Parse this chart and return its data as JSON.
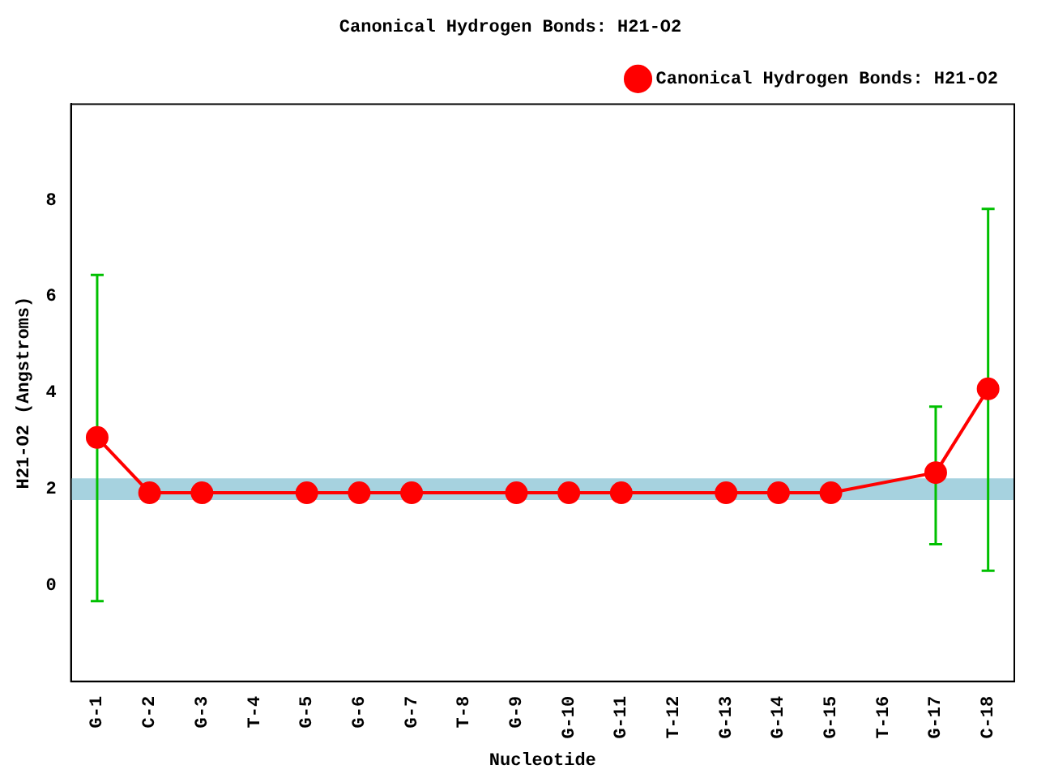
{
  "chart_data": {
    "type": "line",
    "title": "Canonical Hydrogen Bonds: H21-O2",
    "xlabel": "Nucleotide",
    "ylabel": "H21-O2 (Angstroms)",
    "categories": [
      "G-1",
      "C-2",
      "G-3",
      "T-4",
      "G-5",
      "G-6",
      "G-7",
      "T-8",
      "G-9",
      "G-10",
      "G-11",
      "T-12",
      "G-13",
      "G-14",
      "G-15",
      "T-16",
      "G-17",
      "C-18"
    ],
    "series": [
      {
        "name": "Canonical Hydrogen Bonds: H21-O2",
        "color": "#ff0000",
        "values": [
          3.07,
          1.92,
          1.92,
          null,
          1.92,
          1.92,
          1.92,
          null,
          1.92,
          1.92,
          1.92,
          null,
          1.92,
          1.92,
          1.92,
          null,
          2.34,
          4.08
        ],
        "errors": [
          [
            -0.33,
            6.45
          ],
          null,
          null,
          null,
          null,
          null,
          null,
          null,
          null,
          null,
          null,
          null,
          null,
          null,
          null,
          null,
          [
            0.85,
            3.71
          ],
          [
            0.3,
            7.82
          ]
        ]
      }
    ],
    "bands": [
      {
        "axis": "y",
        "from": 1.77,
        "to": 2.22,
        "color": "#a6d2df"
      }
    ],
    "ylim": [
      -2,
      10
    ],
    "yticks": [
      0,
      2,
      4,
      6,
      8
    ],
    "grid": false,
    "legend": "top right",
    "marker": "circle",
    "line_style": "solid"
  }
}
